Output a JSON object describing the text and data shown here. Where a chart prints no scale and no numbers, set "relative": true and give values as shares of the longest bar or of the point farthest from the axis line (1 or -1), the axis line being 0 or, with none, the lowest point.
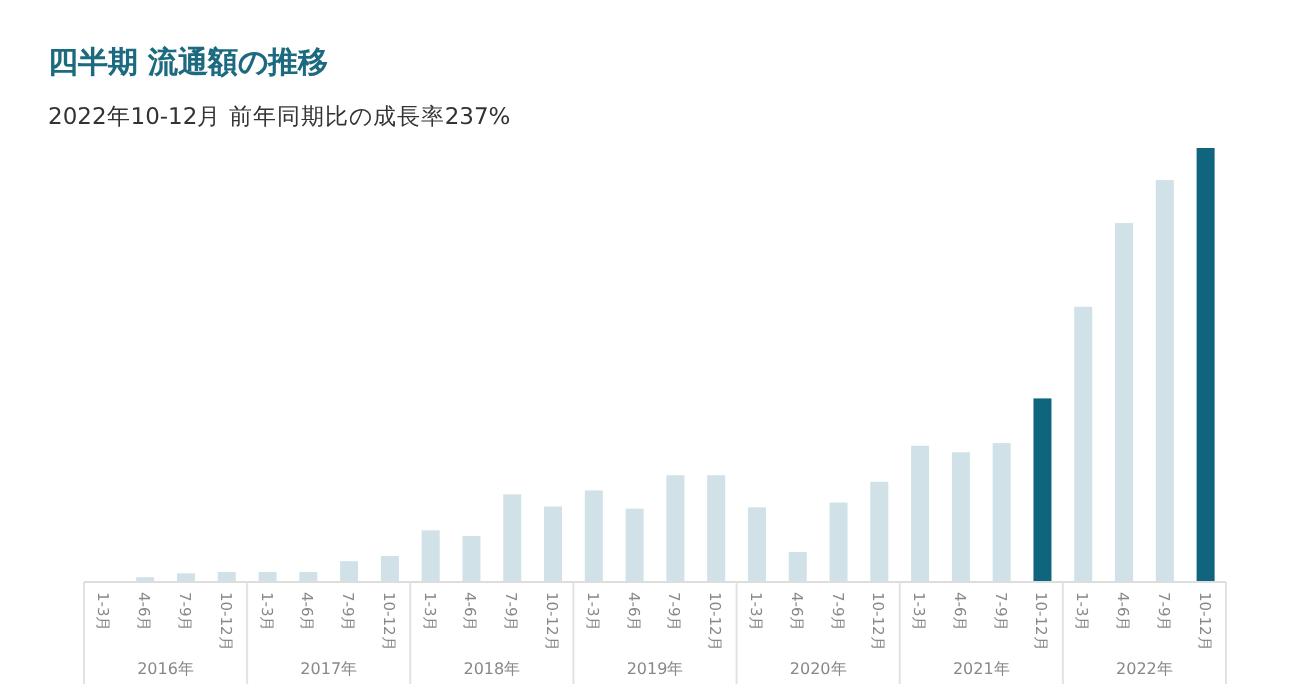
{
  "chart_data": {
    "type": "bar",
    "title": "四半期 流通額の推移",
    "subtitle": "2022年10-12月 前年同期比の成長率237%",
    "categories": [
      "1-3月",
      "4-6月",
      "7-9月",
      "10-12月",
      "1-3月",
      "4-6月",
      "7-9月",
      "10-12月",
      "1-3月",
      "4-6月",
      "7-9月",
      "10-12月",
      "1-3月",
      "4-6月",
      "7-9月",
      "10-12月",
      "1-3月",
      "4-6月",
      "7-9月",
      "10-12月",
      "1-3月",
      "4-6月",
      "7-9月",
      "10-12月",
      "1-3月",
      "4-6月",
      "7-9月",
      "10-12月"
    ],
    "values": [
      0,
      0.011,
      0.02,
      0.023,
      0.023,
      0.023,
      0.048,
      0.06,
      0.119,
      0.106,
      0.202,
      0.174,
      0.211,
      0.169,
      0.246,
      0.246,
      0.172,
      0.069,
      0.183,
      0.231,
      0.314,
      0.299,
      0.32,
      0.423,
      0.634,
      0.827,
      0.926,
      1
    ],
    "colors": [
      "#d0e1e8",
      "#d0e1e8",
      "#d0e1e8",
      "#d0e1e8",
      "#d0e1e8",
      "#d0e1e8",
      "#d0e1e8",
      "#d0e1e8",
      "#d0e1e8",
      "#d0e1e8",
      "#d0e1e8",
      "#d0e1e8",
      "#d0e1e8",
      "#d0e1e8",
      "#d0e1e8",
      "#d0e1e8",
      "#d0e1e8",
      "#d0e1e8",
      "#d0e1e8",
      "#d0e1e8",
      "#d0e1e8",
      "#d0e1e8",
      "#d0e1e8",
      "#10657e",
      "#d0e1e8",
      "#d0e1e8",
      "#d0e1e8",
      "#10657e"
    ],
    "relative": true,
    "annotations": [
      "2016年",
      "2017年",
      "2018年",
      "2019年",
      "2020年",
      "2021年",
      "2022年"
    ]
  }
}
